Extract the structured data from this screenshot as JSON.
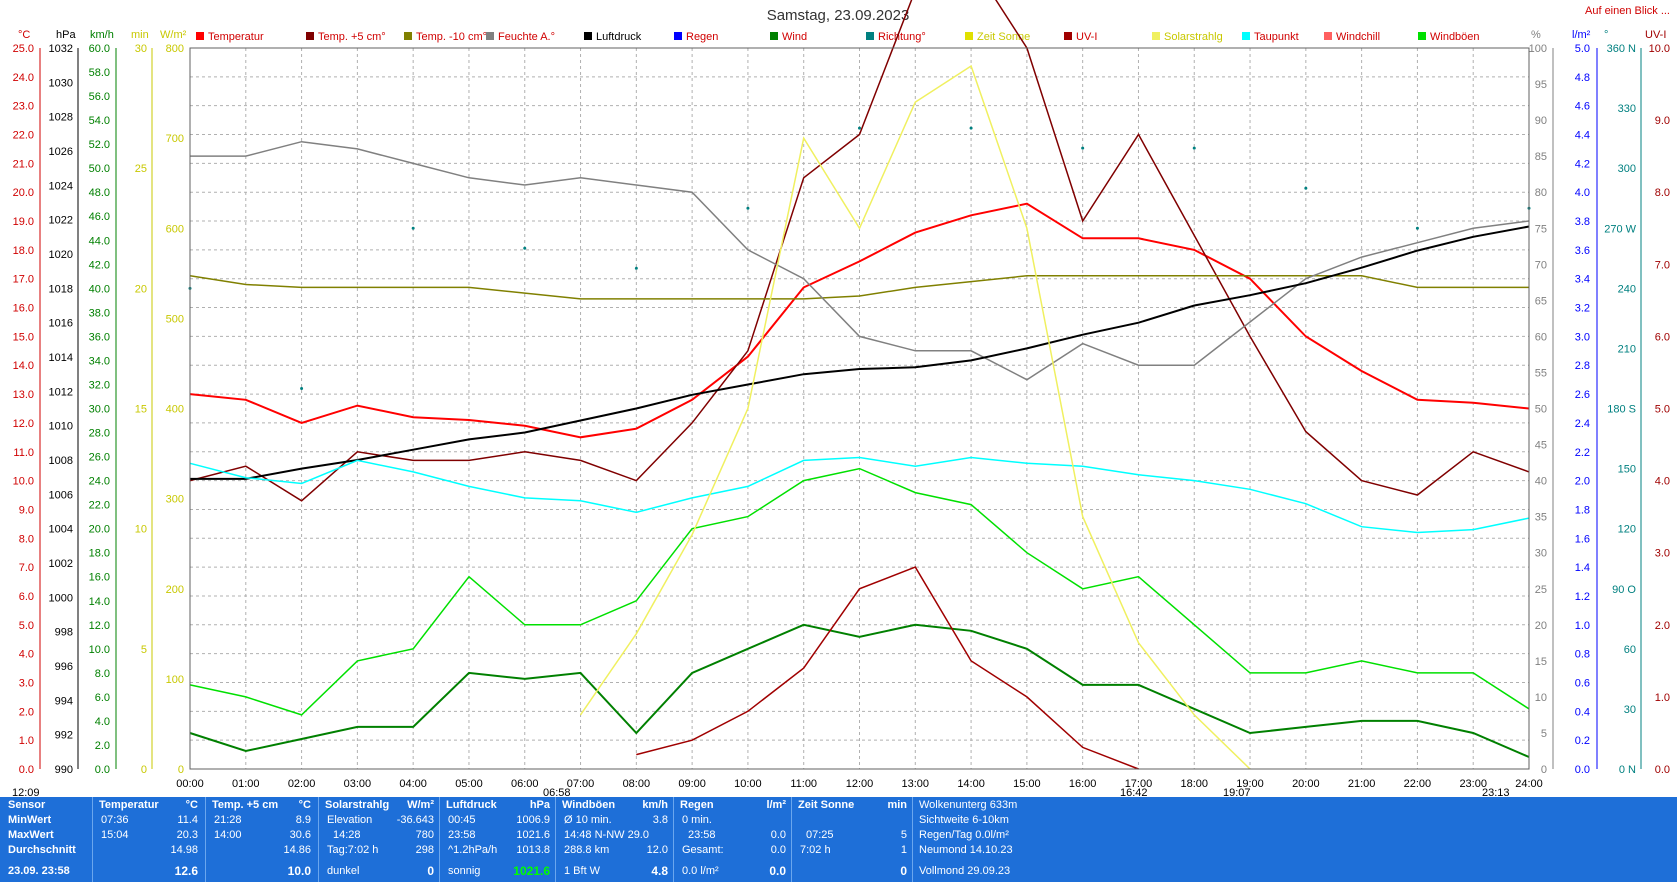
{
  "title": "Samstag, 23.09.2023",
  "top_link": "Auf einen Blick ...",
  "legend": [
    {
      "label": "Temperatur",
      "color": "#ff0000"
    },
    {
      "label": "Temp. +5 cm°",
      "color": "#800000"
    },
    {
      "label": "Temp. -10 cm°",
      "color": "#808000"
    },
    {
      "label": "Feuchte A.°",
      "color": "#808080"
    },
    {
      "label": "Luftdruck",
      "color": "#000000"
    },
    {
      "label": "Regen",
      "color": "#0000ff"
    },
    {
      "label": "Wind",
      "color": "#008000"
    },
    {
      "label": "Richtung°",
      "color": "#008080"
    },
    {
      "label": "Zeit Sonne",
      "color": "#e0e000"
    },
    {
      "label": "UV-I",
      "color": "#a00000"
    },
    {
      "label": "Solarstrahlg",
      "color": "#f0f060"
    },
    {
      "label": "Taupunkt",
      "color": "#00ffff"
    },
    {
      "label": "Windchill",
      "color": "#ff6060"
    },
    {
      "label": "Windböen",
      "color": "#00e000"
    }
  ],
  "axis_headers": {
    "temp": "°C",
    "press": "hPa",
    "wind": "km/h",
    "min": "min",
    "solar": "W/m²",
    "pct": "%",
    "rain": "l/m²",
    "dir": "°",
    "uv": "UV-I"
  },
  "left_axes": {
    "temp": [
      "25.0",
      "24.0",
      "23.0",
      "22.0",
      "21.0",
      "20.0",
      "19.0",
      "18.0",
      "17.0",
      "16.0",
      "15.0",
      "14.0",
      "13.0",
      "12.0",
      "11.0",
      "10.0",
      "9.0",
      "8.0",
      "7.0",
      "6.0",
      "5.0",
      "4.0",
      "3.0",
      "2.0",
      "1.0",
      "0.0"
    ],
    "press": [
      "1032",
      "1030",
      "1028",
      "1026",
      "1024",
      "1022",
      "1020",
      "1018",
      "1016",
      "1014",
      "1012",
      "1010",
      "1008",
      "1006",
      "1004",
      "1002",
      "1000",
      "998",
      "996",
      "994",
      "992",
      "990"
    ],
    "wind": [
      "60.0",
      "58.0",
      "56.0",
      "54.0",
      "52.0",
      "50.0",
      "48.0",
      "46.0",
      "44.0",
      "42.0",
      "40.0",
      "38.0",
      "36.0",
      "34.0",
      "32.0",
      "30.0",
      "28.0",
      "26.0",
      "24.0",
      "22.0",
      "20.0",
      "18.0",
      "16.0",
      "14.0",
      "12.0",
      "10.0",
      "8.0",
      "6.0",
      "4.0",
      "2.0",
      "0.0"
    ],
    "min": [
      "30",
      "25",
      "20",
      "15",
      "10",
      "5",
      "0"
    ],
    "solar": [
      "800",
      "700",
      "600",
      "500",
      "400",
      "300",
      "200",
      "100",
      "0"
    ]
  },
  "right_axes": {
    "pct": [
      "100",
      "95",
      "90",
      "85",
      "80",
      "75",
      "70",
      "65",
      "60",
      "55",
      "50",
      "45",
      "40",
      "35",
      "30",
      "25",
      "20",
      "15",
      "10",
      "5",
      "0"
    ],
    "rain": [
      "5.0",
      "4.8",
      "4.6",
      "4.4",
      "4.2",
      "4.0",
      "3.8",
      "3.6",
      "3.4",
      "3.2",
      "3.0",
      "2.8",
      "2.6",
      "2.4",
      "2.2",
      "2.0",
      "1.8",
      "1.6",
      "1.4",
      "1.2",
      "1.0",
      "0.8",
      "0.6",
      "0.4",
      "0.2",
      "0.0"
    ],
    "dir": [
      "360 N",
      "330",
      "300",
      "270 W",
      "240",
      "210",
      "180 S",
      "150",
      "120",
      "90 O",
      "60",
      "30",
      "0 N"
    ],
    "uv": [
      "10.0",
      "9.0",
      "8.0",
      "7.0",
      "6.0",
      "5.0",
      "4.0",
      "3.0",
      "2.0",
      "1.0",
      "0.0"
    ]
  },
  "x_ticks": [
    "00:00",
    "01:00",
    "02:00",
    "03:00",
    "04:00",
    "05:00",
    "06:00",
    "07:00",
    "08:00",
    "09:00",
    "10:00",
    "11:00",
    "12:00",
    "13:00",
    "14:00",
    "15:00",
    "16:00",
    "17:00",
    "18:00",
    "19:00",
    "20:00",
    "21:00",
    "22:00",
    "23:00",
    "24:00"
  ],
  "markers": {
    "left_time": "12:09",
    "sunrise": "06:58",
    "sunset": "19:07",
    "moon1": "16:42",
    "moon2": "23:13"
  },
  "colors": {
    "panel": "#1e6fd8",
    "grid": "#b0b0b0"
  },
  "chart_data": {
    "type": "line",
    "title": "Samstag, 23.09.2023",
    "x_range": [
      "00:00",
      "24:00"
    ],
    "series": [
      {
        "name": "Temperatur",
        "unit": "°C",
        "x": [
          "00:00",
          "01:00",
          "02:00",
          "03:00",
          "04:00",
          "05:00",
          "06:00",
          "07:00",
          "08:00",
          "09:00",
          "10:00",
          "11:00",
          "12:00",
          "13:00",
          "14:00",
          "15:00",
          "16:00",
          "17:00",
          "18:00",
          "19:00",
          "20:00",
          "21:00",
          "22:00",
          "23:00",
          "24:00"
        ],
        "values": [
          13.0,
          12.8,
          12.0,
          12.6,
          12.2,
          12.1,
          11.9,
          11.5,
          11.8,
          12.8,
          14.3,
          16.7,
          17.6,
          18.6,
          19.2,
          19.6,
          18.4,
          18.4,
          18.0,
          17.0,
          15.0,
          13.8,
          12.8,
          12.7,
          12.5
        ]
      },
      {
        "name": "Temp. +5 cm°",
        "unit": "°C",
        "x": [
          "00:00",
          "01:00",
          "02:00",
          "03:00",
          "04:00",
          "05:00",
          "06:00",
          "07:00",
          "08:00",
          "09:00",
          "10:00",
          "11:00",
          "12:00",
          "13:00",
          "14:00",
          "15:00",
          "16:00",
          "17:00",
          "18:00",
          "19:00",
          "20:00",
          "21:00",
          "22:00",
          "23:00",
          "24:00"
        ],
        "values": [
          10.0,
          10.5,
          9.3,
          11.0,
          10.7,
          10.7,
          11.0,
          10.7,
          10.0,
          12.0,
          14.5,
          20.5,
          22.0,
          27.0,
          28.0,
          25.0,
          19.0,
          22.0,
          18.5,
          15.0,
          11.7,
          10.0,
          9.5,
          11.0,
          10.3
        ]
      },
      {
        "name": "Temp. -10 cm°",
        "unit": "°C",
        "x": [
          "00:00",
          "01:00",
          "02:00",
          "03:00",
          "04:00",
          "05:00",
          "06:00",
          "07:00",
          "08:00",
          "09:00",
          "10:00",
          "11:00",
          "12:00",
          "13:00",
          "14:00",
          "15:00",
          "16:00",
          "17:00",
          "18:00",
          "19:00",
          "20:00",
          "21:00",
          "22:00",
          "23:00",
          "24:00"
        ],
        "values": [
          17.1,
          16.8,
          16.7,
          16.7,
          16.7,
          16.7,
          16.5,
          16.3,
          16.3,
          16.3,
          16.3,
          16.3,
          16.4,
          16.7,
          16.9,
          17.1,
          17.1,
          17.1,
          17.1,
          17.1,
          17.1,
          17.1,
          16.7,
          16.7,
          16.7
        ]
      },
      {
        "name": "Feuchte A.°",
        "unit": "%",
        "x": [
          "00:00",
          "01:00",
          "02:00",
          "03:00",
          "04:00",
          "05:00",
          "06:00",
          "07:00",
          "08:00",
          "09:00",
          "10:00",
          "11:00",
          "12:00",
          "13:00",
          "14:00",
          "15:00",
          "16:00",
          "17:00",
          "18:00",
          "19:00",
          "20:00",
          "21:00",
          "22:00",
          "23:00",
          "24:00"
        ],
        "values": [
          85,
          85,
          87,
          86,
          84,
          82,
          81,
          82,
          81,
          80,
          72,
          68,
          60,
          58,
          58,
          54,
          59,
          56,
          56,
          62,
          68,
          71,
          73,
          75,
          76
        ]
      },
      {
        "name": "Luftdruck",
        "unit": "hPa",
        "x": [
          "00:00",
          "01:00",
          "02:00",
          "03:00",
          "04:00",
          "05:00",
          "06:00",
          "07:00",
          "08:00",
          "09:00",
          "10:00",
          "11:00",
          "12:00",
          "13:00",
          "14:00",
          "15:00",
          "16:00",
          "17:00",
          "18:00",
          "19:00",
          "20:00",
          "21:00",
          "22:00",
          "23:00",
          "24:00"
        ],
        "values": [
          1006.9,
          1006.9,
          1007.5,
          1008.0,
          1008.6,
          1009.2,
          1009.6,
          1010.3,
          1011.0,
          1011.8,
          1012.4,
          1013.0,
          1013.3,
          1013.4,
          1013.8,
          1014.5,
          1015.3,
          1016.0,
          1017.0,
          1017.6,
          1018.3,
          1019.2,
          1020.2,
          1021.0,
          1021.6
        ]
      },
      {
        "name": "Taupunkt",
        "unit": "°C",
        "x": [
          "00:00",
          "01:00",
          "02:00",
          "03:00",
          "04:00",
          "05:00",
          "06:00",
          "07:00",
          "08:00",
          "09:00",
          "10:00",
          "11:00",
          "12:00",
          "13:00",
          "14:00",
          "15:00",
          "16:00",
          "17:00",
          "18:00",
          "19:00",
          "20:00",
          "21:00",
          "22:00",
          "23:00",
          "24:00"
        ],
        "values": [
          10.6,
          10.1,
          9.9,
          10.7,
          10.3,
          9.8,
          9.4,
          9.3,
          8.9,
          9.4,
          9.8,
          10.7,
          10.8,
          10.5,
          10.8,
          10.6,
          10.5,
          10.2,
          10.0,
          9.7,
          9.2,
          8.4,
          8.2,
          8.3,
          8.7
        ]
      },
      {
        "name": "Wind",
        "unit": "km/h",
        "x": [
          "00:00",
          "01:00",
          "02:00",
          "03:00",
          "04:00",
          "05:00",
          "06:00",
          "07:00",
          "08:00",
          "09:00",
          "10:00",
          "11:00",
          "12:00",
          "13:00",
          "14:00",
          "15:00",
          "16:00",
          "17:00",
          "18:00",
          "19:00",
          "20:00",
          "21:00",
          "22:00",
          "23:00",
          "24:00"
        ],
        "values": [
          3.0,
          1.5,
          2.5,
          3.5,
          3.5,
          8.0,
          7.5,
          8.0,
          3.0,
          8.0,
          10.0,
          12.0,
          11.0,
          12.0,
          11.5,
          10.0,
          7.0,
          7.0,
          5.0,
          3.0,
          3.5,
          4.0,
          4.0,
          3.0,
          1.0
        ]
      },
      {
        "name": "Windböen",
        "unit": "km/h",
        "x": [
          "00:00",
          "01:00",
          "02:00",
          "03:00",
          "04:00",
          "05:00",
          "06:00",
          "07:00",
          "08:00",
          "09:00",
          "10:00",
          "11:00",
          "12:00",
          "13:00",
          "14:00",
          "15:00",
          "16:00",
          "17:00",
          "18:00",
          "19:00",
          "20:00",
          "21:00",
          "22:00",
          "23:00",
          "24:00"
        ],
        "values": [
          7.0,
          6.0,
          4.5,
          9.0,
          10.0,
          16.0,
          12.0,
          12.0,
          14.0,
          20.0,
          21.0,
          24.0,
          25.0,
          23.0,
          22.0,
          18.0,
          15.0,
          16.0,
          12.0,
          8.0,
          8.0,
          9.0,
          8.0,
          8.0,
          5.0
        ]
      },
      {
        "name": "Solarstrahlg",
        "unit": "W/m²",
        "x": [
          "07:00",
          "08:00",
          "09:00",
          "10:00",
          "11:00",
          "12:00",
          "13:00",
          "14:00",
          "15:00",
          "16:00",
          "17:00",
          "18:00",
          "19:00"
        ],
        "values": [
          60,
          150,
          260,
          400,
          700,
          600,
          740,
          780,
          600,
          280,
          140,
          60,
          0
        ]
      },
      {
        "name": "UV-I",
        "unit": "UV-I",
        "x": [
          "08:00",
          "09:00",
          "10:00",
          "11:00",
          "12:00",
          "13:00",
          "14:00",
          "15:00",
          "16:00",
          "17:00"
        ],
        "values": [
          0.2,
          0.4,
          0.8,
          1.4,
          2.5,
          2.8,
          1.5,
          1.0,
          0.3,
          0.0
        ]
      },
      {
        "name": "Richtung°",
        "unit": "°",
        "x": [
          "00:00",
          "02:00",
          "04:00",
          "06:00",
          "08:00",
          "10:00",
          "12:00",
          "14:00",
          "16:00",
          "18:00",
          "20:00",
          "22:00",
          "24:00"
        ],
        "values": [
          240,
          190,
          270,
          260,
          250,
          280,
          320,
          320,
          310,
          310,
          290,
          270,
          280
        ]
      }
    ]
  },
  "stats": {
    "sensor": {
      "header": "Sensor",
      "rows": [
        "MinWert",
        "MaxWert",
        "Durchschnitt",
        "23.09. 23:58"
      ]
    },
    "temp": {
      "header": "Temperatur",
      "unit": "°C",
      "rows": [
        [
          "07:36",
          "11.4"
        ],
        [
          "15:04",
          "20.3"
        ],
        [
          "",
          "14.98"
        ],
        [
          "",
          "12.6"
        ]
      ]
    },
    "temp5": {
      "header": "Temp. +5 cm",
      "unit": "°C",
      "rows": [
        [
          "21:28",
          "8.9"
        ],
        [
          "14:00",
          "30.6"
        ],
        [
          "",
          "14.86"
        ],
        [
          "",
          "10.0"
        ]
      ]
    },
    "solar": {
      "header": "Solarstrahlg",
      "unit": "W/m²",
      "rows": [
        [
          "Elevation",
          "-36.643"
        ],
        [
          "14:28",
          "780"
        ],
        [
          "Tag:7:02 h",
          "298"
        ],
        [
          "dunkel",
          "0"
        ]
      ]
    },
    "press": {
      "header": "Luftdruck",
      "unit": "hPa",
      "rows": [
        [
          "00:45",
          "1006.9"
        ],
        [
          "23:58",
          "1021.6"
        ],
        [
          "^1.2hPa/h",
          "1013.8"
        ],
        [
          "sonnig",
          "1021.6"
        ]
      ]
    },
    "gust": {
      "header": "Windböen",
      "unit": "km/h",
      "rows": [
        [
          "Ø 10 min.",
          "3.8"
        ],
        [
          "14:48  N-NW 29.0",
          ""
        ],
        [
          "288.8 km",
          "12.0"
        ],
        [
          "1 Bft W",
          "4.8"
        ]
      ]
    },
    "rain": {
      "header": "Regen",
      "unit": "l/m²",
      "rows": [
        [
          "0 min.",
          ""
        ],
        [
          "23:58",
          "0.0"
        ],
        [
          "Gesamt:",
          "0.0"
        ],
        [
          "0.0 l/m²",
          "0.0"
        ]
      ]
    },
    "sun": {
      "header": "Zeit Sonne",
      "unit": "min",
      "rows": [
        [
          "07:25",
          "5"
        ],
        [
          "7:02 h",
          "1"
        ],
        [
          "",
          "0"
        ],
        [
          "",
          ""
        ]
      ]
    },
    "moon": {
      "rows": [
        "Wolkenunterg  633m",
        "Sichtweite    6-10km",
        "Regen/Tag    0.0l/m²",
        "Neumond     14.10.23",
        "Vollmond     29.09.23"
      ]
    }
  }
}
